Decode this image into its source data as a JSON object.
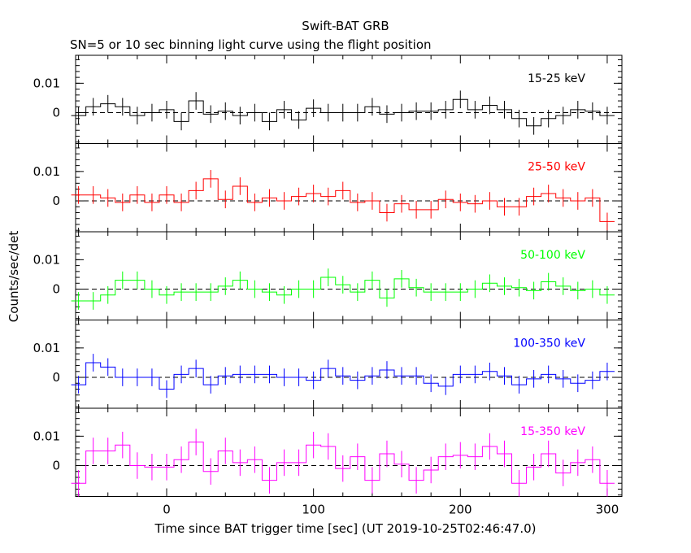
{
  "chart_data": {
    "type": "line",
    "title": "Swift-BAT GRB",
    "subtitle": "SN=5 or 10 sec binning light curve using the flight position",
    "xlabel": "Time since BAT trigger time [sec] (UT 2019-10-25T02:46:47.0)",
    "ylabel": "Counts/sec/det",
    "xlim": [
      -62,
      310
    ],
    "x_ticks": [
      "0",
      "100",
      "200",
      "300"
    ],
    "x_tick_values": [
      0,
      100,
      200,
      300
    ],
    "bin_width_sec": 10,
    "x": [
      -60,
      -50,
      -40,
      -30,
      -20,
      -10,
      0,
      10,
      20,
      30,
      40,
      50,
      60,
      70,
      80,
      90,
      100,
      110,
      120,
      130,
      140,
      150,
      160,
      170,
      180,
      190,
      200,
      210,
      220,
      230,
      240,
      250,
      260,
      270,
      280,
      290,
      300
    ],
    "panels": [
      {
        "name": "15-25 keV",
        "color": "#000000",
        "ylim": [
          -0.0105,
          0.0195
        ],
        "y_ticks": [
          "0.01",
          "0"
        ],
        "y_tick_values": [
          0.01,
          0
        ],
        "values": [
          -0.001,
          0.002,
          0.003,
          0.002,
          -0.001,
          0.0,
          0.001,
          -0.003,
          0.004,
          -0.0005,
          0.0005,
          -0.001,
          0.0,
          -0.003,
          0.001,
          -0.0025,
          0.0015,
          0.0,
          0.0,
          0.0,
          0.002,
          -0.0005,
          0.0,
          0.0005,
          0.0005,
          0.001,
          0.0045,
          0.001,
          0.0025,
          0.001,
          -0.002,
          -0.0045,
          -0.002,
          -0.001,
          0.001,
          0.0005,
          -0.001
        ],
        "errors": [
          0.003,
          0.003,
          0.003,
          0.003,
          0.003,
          0.003,
          0.003,
          0.003,
          0.003,
          0.003,
          0.003,
          0.003,
          0.003,
          0.003,
          0.003,
          0.003,
          0.003,
          0.003,
          0.003,
          0.003,
          0.003,
          0.003,
          0.003,
          0.003,
          0.003,
          0.003,
          0.003,
          0.003,
          0.003,
          0.003,
          0.003,
          0.003,
          0.003,
          0.003,
          0.003,
          0.003,
          0.003
        ]
      },
      {
        "name": "25-50 keV",
        "color": "#ff0000",
        "ylim": [
          -0.0105,
          0.0195
        ],
        "y_ticks": [
          "0.01",
          "0"
        ],
        "y_tick_values": [
          0.01,
          0
        ],
        "values": [
          0.002,
          0.002,
          0.001,
          -0.0005,
          0.002,
          -0.0005,
          0.002,
          -0.0005,
          0.0035,
          0.0075,
          0.0005,
          0.005,
          -0.0005,
          0.001,
          0.0,
          0.0015,
          0.0025,
          0.0015,
          0.0035,
          -0.0005,
          0.0,
          -0.004,
          -0.001,
          -0.003,
          -0.003,
          0.0005,
          -0.0005,
          -0.001,
          0.0,
          -0.002,
          -0.002,
          0.0015,
          0.0025,
          0.001,
          0.0,
          0.001,
          -0.007
        ],
        "errors": [
          0.003,
          0.003,
          0.003,
          0.003,
          0.003,
          0.003,
          0.003,
          0.003,
          0.003,
          0.003,
          0.003,
          0.003,
          0.003,
          0.003,
          0.003,
          0.003,
          0.003,
          0.003,
          0.003,
          0.003,
          0.003,
          0.003,
          0.003,
          0.003,
          0.003,
          0.003,
          0.003,
          0.003,
          0.003,
          0.003,
          0.003,
          0.003,
          0.003,
          0.003,
          0.003,
          0.003,
          0.003
        ]
      },
      {
        "name": "50-100 keV",
        "color": "#00ff00",
        "ylim": [
          -0.0105,
          0.0195
        ],
        "y_ticks": [
          "0.01",
          "0"
        ],
        "y_tick_values": [
          0.01,
          0
        ],
        "values": [
          -0.004,
          -0.004,
          -0.002,
          0.003,
          0.003,
          0.0,
          -0.002,
          -0.001,
          -0.001,
          -0.001,
          0.001,
          0.003,
          0.0,
          -0.001,
          -0.002,
          0.0,
          0.0,
          0.004,
          0.0015,
          -0.001,
          0.003,
          -0.003,
          0.0035,
          0.0005,
          -0.001,
          -0.001,
          -0.001,
          0.0,
          0.002,
          0.001,
          0.0005,
          -0.0005,
          0.0025,
          0.001,
          -0.0005,
          0.0,
          -0.002
        ],
        "errors": [
          0.003,
          0.003,
          0.003,
          0.003,
          0.003,
          0.003,
          0.003,
          0.003,
          0.003,
          0.003,
          0.003,
          0.003,
          0.003,
          0.003,
          0.003,
          0.003,
          0.003,
          0.003,
          0.003,
          0.003,
          0.003,
          0.003,
          0.003,
          0.003,
          0.003,
          0.003,
          0.003,
          0.003,
          0.003,
          0.003,
          0.003,
          0.003,
          0.003,
          0.003,
          0.003,
          0.003,
          0.003
        ]
      },
      {
        "name": "100-350 keV",
        "color": "#0000ff",
        "ylim": [
          -0.0105,
          0.0195
        ],
        "y_ticks": [
          "0.01",
          "0"
        ],
        "y_tick_values": [
          0.01,
          0
        ],
        "values": [
          -0.0025,
          0.005,
          0.0035,
          0.0,
          0.0,
          0.0,
          -0.004,
          0.001,
          0.003,
          -0.0025,
          0.0005,
          0.001,
          0.001,
          0.001,
          0.0,
          0.0,
          -0.001,
          0.003,
          0.0005,
          -0.001,
          0.0005,
          0.0025,
          0.0005,
          0.0005,
          -0.002,
          -0.003,
          0.001,
          0.001,
          0.002,
          0.0005,
          -0.0025,
          -0.0005,
          0.001,
          -0.0005,
          -0.002,
          -0.001,
          0.002
        ],
        "errors": [
          0.003,
          0.003,
          0.003,
          0.003,
          0.003,
          0.003,
          0.003,
          0.003,
          0.003,
          0.003,
          0.003,
          0.003,
          0.003,
          0.003,
          0.003,
          0.003,
          0.003,
          0.003,
          0.003,
          0.003,
          0.003,
          0.003,
          0.003,
          0.003,
          0.003,
          0.003,
          0.003,
          0.003,
          0.003,
          0.003,
          0.003,
          0.003,
          0.003,
          0.003,
          0.003,
          0.003,
          0.003
        ]
      },
      {
        "name": "15-350 keV",
        "color": "#ff00ff",
        "ylim": [
          -0.0105,
          0.0195
        ],
        "y_ticks": [
          "0.01",
          "0"
        ],
        "y_tick_values": [
          0.01,
          0
        ],
        "values": [
          -0.006,
          0.005,
          0.005,
          0.007,
          0.0,
          -0.0005,
          -0.0005,
          0.002,
          0.008,
          -0.002,
          0.005,
          0.001,
          0.002,
          -0.005,
          0.001,
          0.001,
          0.007,
          0.0065,
          -0.001,
          0.003,
          -0.005,
          0.004,
          0.0005,
          -0.005,
          -0.0015,
          0.003,
          0.0035,
          0.003,
          0.0065,
          0.004,
          -0.006,
          -0.0005,
          0.004,
          -0.0025,
          0.001,
          0.002,
          -0.006
        ],
        "errors": [
          0.0045,
          0.0045,
          0.0045,
          0.0045,
          0.0045,
          0.0045,
          0.0045,
          0.0045,
          0.0045,
          0.0045,
          0.0045,
          0.0045,
          0.0045,
          0.0045,
          0.0045,
          0.0045,
          0.0045,
          0.0045,
          0.0045,
          0.0045,
          0.0045,
          0.0045,
          0.0045,
          0.0045,
          0.0045,
          0.0045,
          0.0045,
          0.0045,
          0.0045,
          0.0045,
          0.0045,
          0.0045,
          0.0045,
          0.0045,
          0.0045,
          0.0045,
          0.0045
        ]
      }
    ],
    "zero_line": "dashed",
    "grid": false,
    "legend": "panel labels, top-right"
  }
}
